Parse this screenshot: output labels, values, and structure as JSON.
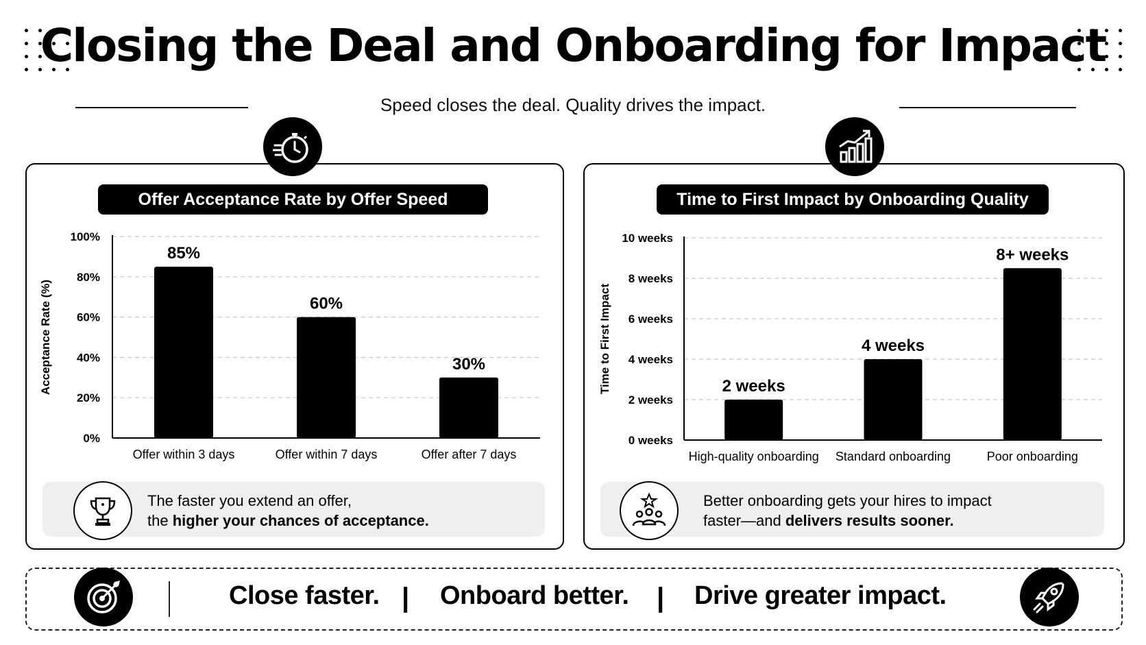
{
  "header": {
    "title": "Closing the Deal and Onboarding for Impact",
    "subtitle": "Speed closes the deal. Quality drives the impact."
  },
  "icons": {
    "left_badge": "stopwatch-icon",
    "right_badge": "growth-chart-icon",
    "left_callout": "trophy-icon",
    "right_callout": "team-star-icon",
    "banner_left": "target-icon",
    "banner_right": "rocket-icon"
  },
  "chart_data": [
    {
      "type": "bar",
      "title": "Offer Acceptance Rate by Offer Speed",
      "ylabel": "Acceptance Rate (%)",
      "xlabel": "",
      "categories": [
        "Offer within 3 days",
        "Offer within 7 days",
        "Offer after 7 days"
      ],
      "values": [
        85,
        60,
        30
      ],
      "data_labels": [
        "85%",
        "60%",
        "30%"
      ],
      "ylim": [
        0,
        100
      ],
      "y_ticks": [
        0,
        20,
        40,
        60,
        80,
        100
      ],
      "y_tick_labels": [
        "0%",
        "20%",
        "40%",
        "60%",
        "80%",
        "100%"
      ],
      "grid": true,
      "bar_color": "#000000"
    },
    {
      "type": "bar",
      "title": "Time to First Impact by Onboarding Quality",
      "ylabel": "Time to First Impact",
      "xlabel": "",
      "categories": [
        "High-quality onboarding",
        "Standard onboarding",
        "Poor onboarding"
      ],
      "values": [
        2,
        4,
        8.5
      ],
      "data_labels": [
        "2 weeks",
        "4 weeks",
        "8+ weeks"
      ],
      "ylim": [
        0,
        10
      ],
      "y_ticks": [
        0,
        2,
        4,
        6,
        8,
        10
      ],
      "y_tick_labels": [
        "0 weeks",
        "2 weeks",
        "4 weeks",
        "6 weeks",
        "8 weeks",
        "10 weeks"
      ],
      "grid": true,
      "bar_color": "#000000"
    }
  ],
  "callouts": {
    "left": {
      "line1": "The faster you extend an offer,",
      "line2_plain": "the ",
      "line2_bold": "higher your chances of acceptance."
    },
    "right": {
      "line1": "Better onboarding gets your hires to impact",
      "line2_plain": "faster—and ",
      "line2_bold": "delivers results sooner."
    }
  },
  "banner": {
    "items": [
      "Close faster.",
      "Onboard better.",
      "Drive greater impact."
    ],
    "separator": "|"
  }
}
